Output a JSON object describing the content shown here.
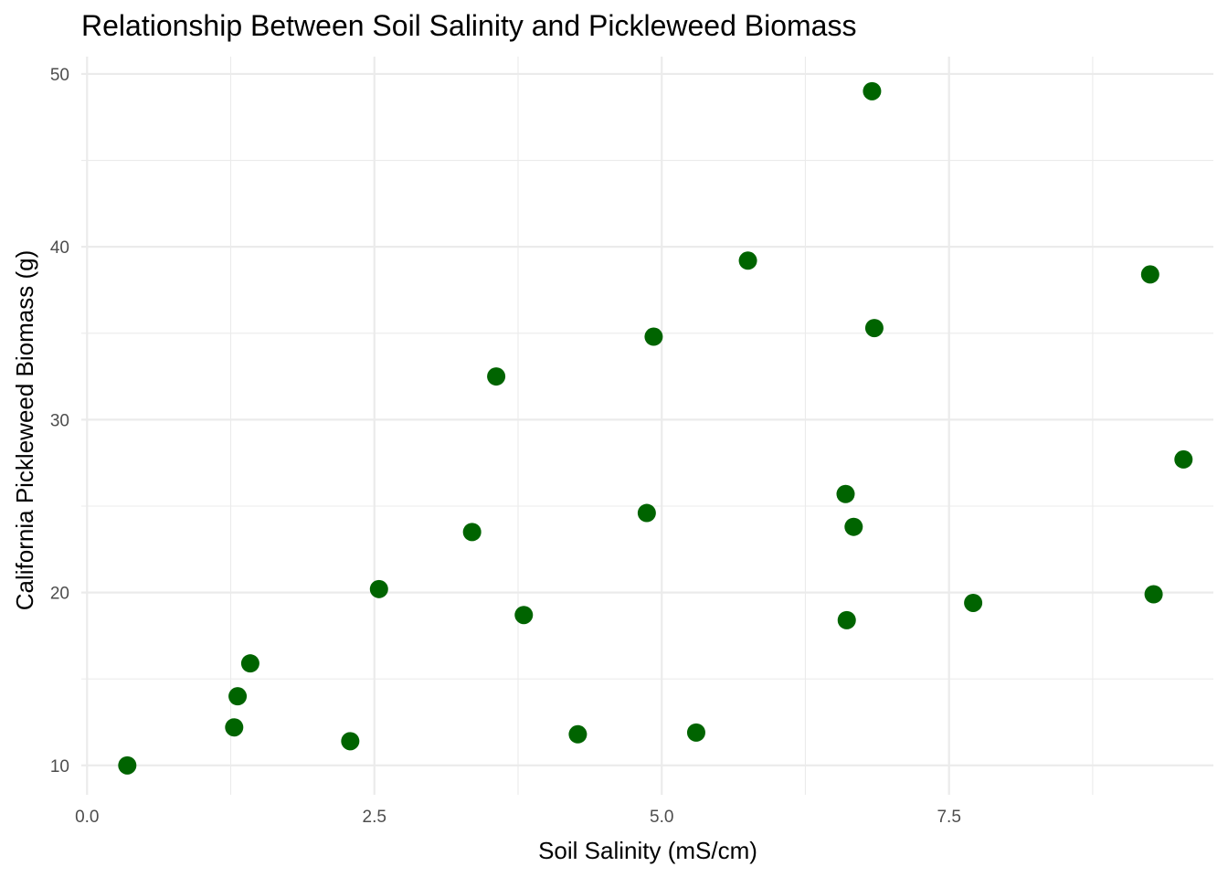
{
  "chart_data": {
    "type": "scatter",
    "title": "Relationship Between Soil Salinity and Pickleweed Biomass",
    "xlabel": "Soil Salinity (mS/cm)",
    "ylabel": "California Pickleweed Biomass (g)",
    "xlim": [
      -0.05,
      9.8
    ],
    "ylim": [
      8.3,
      51.0
    ],
    "x_major_ticks": [
      0.0,
      2.5,
      5.0,
      7.5
    ],
    "x_tick_labels": [
      "0.0",
      "2.5",
      "5.0",
      "7.5"
    ],
    "x_minor_ticks": [
      1.25,
      3.75,
      6.25,
      8.75
    ],
    "y_major_ticks": [
      10,
      20,
      30,
      40,
      50
    ],
    "y_tick_labels": [
      "10",
      "20",
      "30",
      "40",
      "50"
    ],
    "y_minor_ticks": [
      15,
      25,
      35,
      45
    ],
    "grid": true,
    "point_color": "#006400",
    "x": [
      0.35,
      1.28,
      1.31,
      1.42,
      2.29,
      2.54,
      3.35,
      3.56,
      3.8,
      4.27,
      4.87,
      4.93,
      5.3,
      5.75,
      6.6,
      6.61,
      6.67,
      6.83,
      6.85,
      7.71,
      9.25,
      9.28,
      9.54
    ],
    "y": [
      10.0,
      12.2,
      14.0,
      15.9,
      11.4,
      20.2,
      23.5,
      32.5,
      18.7,
      11.8,
      24.6,
      34.8,
      11.9,
      39.2,
      25.7,
      18.4,
      23.8,
      49.0,
      35.3,
      19.4,
      38.4,
      19.9,
      27.7
    ]
  }
}
